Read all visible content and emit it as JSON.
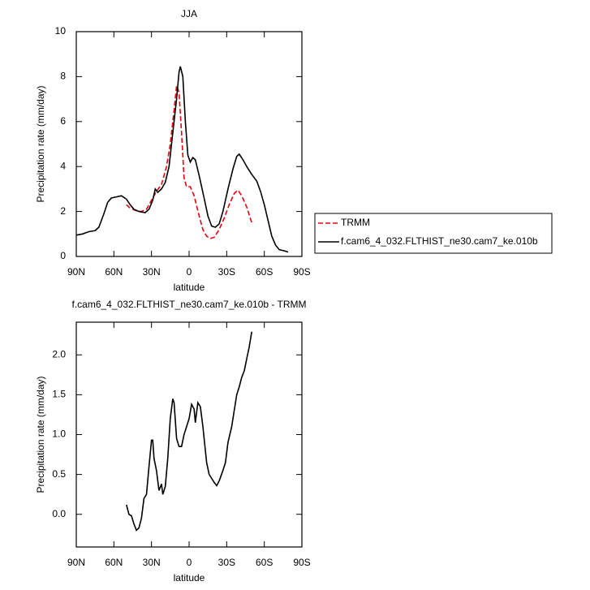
{
  "chart_data": [
    {
      "type": "line",
      "title": "JJA",
      "xlabel": "latitude",
      "ylabel": "Precipitation rate (mm/day)",
      "xlim": [
        90,
        -90
      ],
      "xticks": [
        {
          "value": 90,
          "label": "90N"
        },
        {
          "value": 60,
          "label": "60N"
        },
        {
          "value": 30,
          "label": "30N"
        },
        0,
        {
          "value": -30,
          "label": "30S"
        },
        {
          "value": -60,
          "label": "60S"
        },
        {
          "value": -90,
          "label": "90S"
        }
      ],
      "ylim": [
        0,
        10
      ],
      "yticks": [
        0,
        2,
        4,
        6,
        8,
        10
      ],
      "legend": "right",
      "series": [
        {
          "name": "TRMM",
          "color": "#e8000b",
          "dash": true,
          "x": [
            50,
            47,
            43,
            38,
            34,
            30,
            26,
            22,
            18,
            15,
            12,
            10,
            8,
            6,
            4,
            2,
            -1,
            -4,
            -8,
            -11,
            -14,
            -17,
            -20,
            -24,
            -28,
            -32,
            -36,
            -39,
            -42,
            -46,
            -50
          ],
          "values": [
            2.3,
            2.15,
            2.05,
            2.0,
            2.1,
            2.5,
            2.9,
            3.2,
            4.0,
            5.0,
            6.5,
            7.6,
            7.3,
            5.5,
            3.5,
            3.1,
            3.1,
            2.7,
            1.8,
            1.2,
            0.9,
            0.8,
            0.85,
            1.2,
            1.7,
            2.3,
            2.8,
            2.95,
            2.7,
            2.2,
            1.5
          ]
        },
        {
          "name": "f.cam6_4_032.FLTHIST_ne30.cam7_ke.010b",
          "color": "#000000",
          "dash": false,
          "x": [
            90,
            85,
            80,
            75,
            72,
            68,
            65,
            62,
            58,
            54,
            50,
            47,
            44,
            40,
            35,
            32,
            29,
            27,
            25,
            22,
            19,
            16,
            13,
            10,
            8,
            7,
            5,
            3,
            1,
            -1,
            -3,
            -5,
            -8,
            -12,
            -15,
            -18,
            -21,
            -24,
            -27,
            -31,
            -35,
            -38,
            -40,
            -43,
            -46,
            -50,
            -54,
            -57,
            -60,
            -63,
            -66,
            -69,
            -72,
            -76,
            -79
          ],
          "values": [
            0.95,
            1.0,
            1.1,
            1.15,
            1.3,
            1.9,
            2.4,
            2.6,
            2.65,
            2.7,
            2.55,
            2.3,
            2.1,
            2.0,
            1.95,
            2.1,
            2.5,
            3.0,
            2.85,
            3.0,
            3.3,
            4.0,
            5.5,
            7.0,
            8.2,
            8.45,
            8.0,
            6.0,
            4.5,
            4.2,
            4.4,
            4.3,
            3.6,
            2.6,
            1.8,
            1.35,
            1.3,
            1.45,
            2.0,
            3.0,
            3.9,
            4.45,
            4.55,
            4.3,
            4.0,
            3.65,
            3.35,
            2.9,
            2.3,
            1.6,
            0.9,
            0.5,
            0.3,
            0.25,
            0.2
          ]
        }
      ]
    },
    {
      "type": "line",
      "title": "f.cam6_4_032.FLTHIST_ne30.cam7_ke.010b - TRMM",
      "xlabel": "latitude",
      "ylabel": "Precipitation rate (mm/day)",
      "xlim": [
        90,
        -90
      ],
      "xticks": [
        {
          "value": 90,
          "label": "90N"
        },
        {
          "value": 60,
          "label": "60N"
        },
        {
          "value": 30,
          "label": "30N"
        },
        0,
        {
          "value": -30,
          "label": "30S"
        },
        {
          "value": -60,
          "label": "60S"
        },
        {
          "value": -90,
          "label": "90S"
        }
      ],
      "ylim": [
        -0.41,
        2.41
      ],
      "yticks": [
        {
          "value": 0,
          "label": "0.0"
        },
        0.5,
        {
          "value": 1,
          "label": "1.0"
        },
        1.5,
        {
          "value": 2,
          "label": "2.0"
        }
      ],
      "series": [
        {
          "color": "#000000",
          "dash": false,
          "x": [
            50,
            48,
            46,
            44,
            42,
            40,
            38,
            36,
            34,
            32,
            30,
            29,
            28,
            26,
            24,
            22,
            21,
            19,
            17,
            15,
            13,
            12,
            10,
            8,
            6,
            4,
            2,
            0,
            -2,
            -4,
            -5,
            -7,
            -9,
            -11,
            -14,
            -16,
            -18,
            -20,
            -22,
            -24,
            -27,
            -29,
            -31,
            -34,
            -36,
            -38,
            -40,
            -42,
            -44,
            -46,
            -48,
            -50
          ],
          "values": [
            0.12,
            0.0,
            -0.02,
            -0.12,
            -0.2,
            -0.17,
            -0.05,
            0.2,
            0.25,
            0.6,
            0.93,
            0.93,
            0.7,
            0.55,
            0.3,
            0.38,
            0.25,
            0.35,
            0.7,
            1.2,
            1.45,
            1.4,
            0.95,
            0.85,
            0.85,
            1.0,
            1.1,
            1.2,
            1.38,
            1.32,
            1.15,
            1.4,
            1.35,
            1.1,
            0.65,
            0.5,
            0.45,
            0.4,
            0.36,
            0.42,
            0.55,
            0.65,
            0.9,
            1.1,
            1.3,
            1.5,
            1.6,
            1.72,
            1.8,
            1.95,
            2.1,
            2.29
          ]
        }
      ]
    }
  ]
}
